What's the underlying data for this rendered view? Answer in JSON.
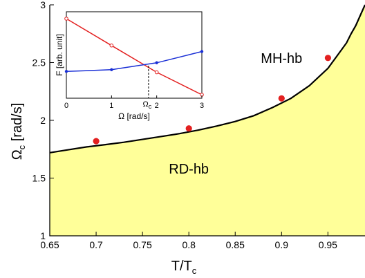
{
  "chart_data": [
    {
      "type": "line",
      "xlabel": "T/T",
      "xlabel_sub": "c",
      "ylabel": "Ω",
      "ylabel_sub": "c",
      "ylabel_unit": " [rad/s]",
      "xlim": [
        0.65,
        0.99
      ],
      "ylim": [
        1,
        3
      ],
      "xticks": [
        0.65,
        0.7,
        0.75,
        0.8,
        0.85,
        0.9,
        0.95
      ],
      "xtick_labels": [
        "0.65",
        "0.7",
        "0.75",
        "0.8",
        "0.85",
        "0.9",
        "0.95"
      ],
      "yticks": [
        1,
        1.5,
        2,
        2.5,
        3
      ],
      "ytick_labels": [
        "1",
        "1.5",
        "2",
        "2.5",
        "3"
      ],
      "grid": false,
      "colors": {
        "fill": "#ffff99",
        "boundary": "#000000",
        "points": "#e32020"
      },
      "regions": [
        {
          "label": "MH-hb",
          "x": 0.9,
          "y": 2.54
        },
        {
          "label": "RD-hb",
          "x": 0.8,
          "y": 1.58
        }
      ],
      "series": [
        {
          "style": "line",
          "x": [
            0.65,
            0.67,
            0.69,
            0.71,
            0.73,
            0.75,
            0.77,
            0.79,
            0.81,
            0.83,
            0.85,
            0.87,
            0.89,
            0.91,
            0.93,
            0.95,
            0.96,
            0.97,
            0.975,
            0.98,
            0.985,
            0.99
          ],
          "y": [
            1.72,
            1.745,
            1.77,
            1.79,
            1.81,
            1.835,
            1.86,
            1.885,
            1.915,
            1.95,
            1.99,
            2.04,
            2.11,
            2.19,
            2.3,
            2.45,
            2.56,
            2.67,
            2.75,
            2.82,
            2.91,
            3.0
          ]
        },
        {
          "style": "points",
          "x": [
            0.7,
            0.8,
            0.9,
            0.95
          ],
          "y": [
            1.82,
            1.93,
            2.19,
            2.54
          ]
        }
      ]
    },
    {
      "type": "line",
      "xlabel": "Ω [rad/s]",
      "ylabel": "F [arb. unit]",
      "xlim": [
        0,
        3
      ],
      "ylim": [
        0,
        1
      ],
      "xticks": [
        0,
        1,
        2,
        3
      ],
      "xtick_labels": [
        "0",
        "1",
        "2",
        "3"
      ],
      "marker_label": "Ω",
      "marker_label_sub": "c",
      "marker_x": 1.82,
      "colors": {
        "red": "#e32020",
        "blue": "#1a2fd6"
      },
      "series": [
        {
          "color": "red",
          "x": [
            0,
            1,
            2,
            3
          ],
          "y": [
            0.92,
            0.61,
            0.3,
            0.04
          ]
        },
        {
          "color": "blue",
          "x": [
            0,
            1,
            2,
            3
          ],
          "y": [
            0.31,
            0.33,
            0.41,
            0.54
          ]
        }
      ]
    }
  ]
}
